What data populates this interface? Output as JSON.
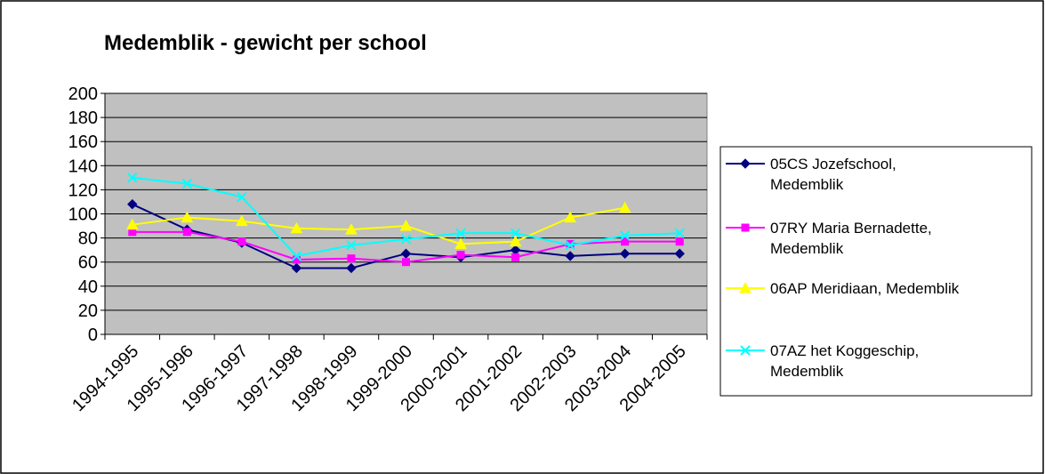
{
  "chart_data": {
    "type": "line",
    "title": "Medemblik - gewicht per school",
    "xlabel": "",
    "ylabel": "",
    "categories": [
      "1994-1995",
      "1995-1996",
      "1996-1997",
      "1997-1998",
      "1998-1999",
      "1999-2000",
      "2000-2001",
      "2001-2002",
      "2002-2003",
      "2003-2004",
      "2004-2005"
    ],
    "ylim": [
      0,
      200
    ],
    "yticks": [
      0,
      20,
      40,
      60,
      80,
      100,
      120,
      140,
      160,
      180,
      200
    ],
    "grid": true,
    "legend_position": "right",
    "series": [
      {
        "name_lines": [
          "05CS Jozefschool,",
          "Medemblik"
        ],
        "color": "#000080",
        "marker": "diamond",
        "values": [
          108,
          87,
          76,
          55,
          55,
          67,
          64,
          70,
          65,
          67,
          67
        ]
      },
      {
        "name_lines": [
          "07RY Maria Bernadette,",
          "Medemblik"
        ],
        "color": "#ff00ff",
        "marker": "square",
        "values": [
          85,
          85,
          77,
          62,
          63,
          60,
          66,
          64,
          75,
          77,
          77
        ]
      },
      {
        "name_lines": [
          "06AP Meridiaan, Medemblik"
        ],
        "color": "#ffff00",
        "marker": "triangle",
        "values": [
          91,
          97,
          94,
          88,
          87,
          90,
          75,
          77,
          97,
          105,
          null
        ]
      },
      {
        "name_lines": [
          "07AZ het Koggeschip,",
          "Medemblik"
        ],
        "color": "#00ffff",
        "marker": "x",
        "values": [
          130,
          125,
          114,
          65,
          74,
          79,
          84,
          84,
          74,
          82,
          84
        ]
      }
    ]
  }
}
